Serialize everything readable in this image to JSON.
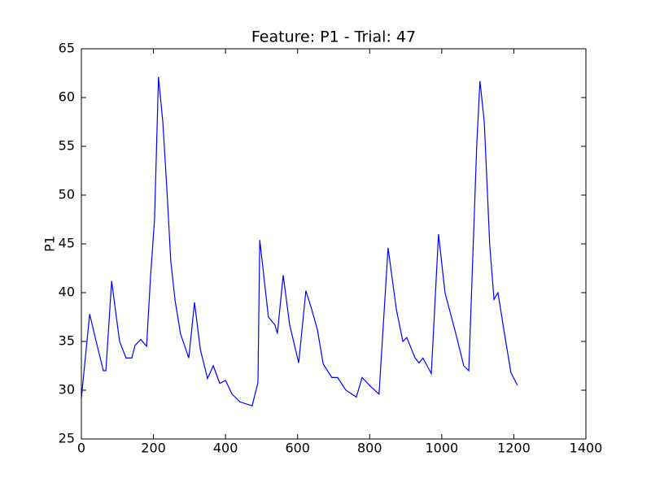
{
  "chart_data": {
    "type": "line",
    "title": "Feature: P1 - Trial: 47",
    "ylabel": "P1",
    "color": "#0000ff",
    "x": [
      0,
      23,
      41,
      61,
      68,
      84,
      106,
      124,
      140,
      149,
      165,
      181,
      192,
      203,
      214,
      226,
      237,
      248,
      260,
      275,
      298,
      314,
      330,
      350,
      366,
      384,
      400,
      418,
      440,
      474,
      490,
      495,
      519,
      537,
      544,
      560,
      578,
      603,
      623,
      639,
      655,
      671,
      695,
      711,
      734,
      763,
      779,
      802,
      826,
      851,
      874,
      892,
      903,
      926,
      937,
      948,
      971,
      991,
      1009,
      1039,
      1061,
      1075,
      1097,
      1106,
      1118,
      1133,
      1145,
      1156,
      1174,
      1192,
      1210
    ],
    "values": [
      29.2,
      37.8,
      35,
      32,
      32,
      41.2,
      35,
      33.3,
      33.3,
      34.6,
      35.2,
      34.5,
      41.7,
      47.5,
      62.1,
      57.5,
      50.8,
      43.3,
      39.2,
      35.8,
      33.3,
      39,
      34.2,
      31.2,
      32.5,
      30.7,
      31,
      29.6,
      28.8,
      28.4,
      30.8,
      45.4,
      37.5,
      36.7,
      35.8,
      41.8,
      36.7,
      32.8,
      40.2,
      38.3,
      36.2,
      32.7,
      31.3,
      31.3,
      30,
      29.3,
      31.3,
      30.4,
      29.6,
      44.6,
      38.3,
      35,
      35.4,
      33.3,
      32.8,
      33.3,
      31.7,
      46,
      40,
      35.8,
      32.5,
      32,
      55,
      61.7,
      57.5,
      45,
      39.3,
      40,
      35.8,
      31.8,
      30.5
    ],
    "xlim": [
      0,
      1400
    ],
    "xticks": [
      0,
      200,
      400,
      600,
      800,
      1000,
      1200,
      1400
    ],
    "ylim": [
      25,
      65
    ],
    "yticks": [
      25,
      30,
      35,
      40,
      45,
      50,
      55,
      60,
      65
    ]
  }
}
